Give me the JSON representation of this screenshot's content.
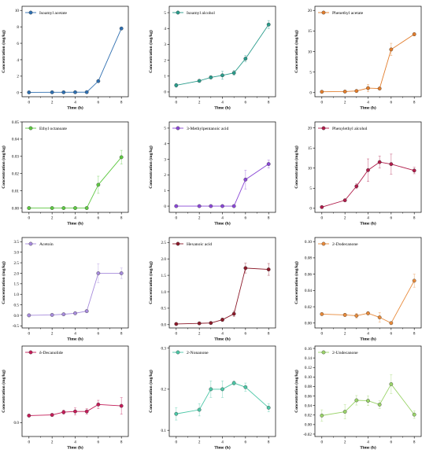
{
  "chart_data": [
    {
      "type": "line",
      "series": [
        {
          "name": "Isoamyl acetate",
          "color": "#2f6fb0",
          "x": [
            0,
            2,
            3,
            4,
            5,
            6,
            8
          ],
          "y": [
            0.03,
            0.04,
            0.04,
            0.05,
            0.06,
            1.4,
            7.8
          ],
          "err": [
            0.01,
            0.01,
            0.01,
            0.01,
            0.01,
            0.1,
            0.12
          ]
        }
      ],
      "xlabel": "Time (h)",
      "ylabel": "Concentration (mg/kg)",
      "xlim": [
        -0.6,
        8.6
      ],
      "ylim": [
        -0.5,
        10.5
      ],
      "xticks": [
        0,
        2,
        4,
        6,
        8
      ],
      "yticks": [
        0,
        2,
        4,
        6,
        8,
        10
      ]
    },
    {
      "type": "line",
      "series": [
        {
          "name": "Isoamyl alcohol",
          "color": "#2a9c8c",
          "x": [
            0,
            2,
            3,
            4,
            5,
            6,
            8
          ],
          "y": [
            0.42,
            0.7,
            0.92,
            1.05,
            1.2,
            2.1,
            4.25
          ],
          "err": [
            0.12,
            0.08,
            0.1,
            0.25,
            0.15,
            0.2,
            0.25
          ]
        }
      ],
      "xlabel": "Time (h)",
      "ylabel": "Concentration (mg/kg)",
      "xlim": [
        -0.6,
        8.6
      ],
      "ylim": [
        -0.3,
        5.4
      ],
      "xticks": [
        0,
        2,
        4,
        6,
        8
      ],
      "yticks": [
        0,
        1,
        2,
        3,
        4,
        5
      ]
    },
    {
      "type": "line",
      "series": [
        {
          "name": "Phenethyl acetate",
          "color": "#e27d2c",
          "x": [
            0,
            2,
            3,
            4,
            5,
            6,
            8
          ],
          "y": [
            0.2,
            0.25,
            0.4,
            1.1,
            1.0,
            10.5,
            14.2
          ],
          "err": [
            0.1,
            0.1,
            0.2,
            0.9,
            0.3,
            1.5,
            0.4
          ]
        }
      ],
      "xlabel": "Time (h)",
      "ylabel": "Concentration (mg/kg)",
      "xlim": [
        -0.6,
        8.6
      ],
      "ylim": [
        -1,
        21
      ],
      "xticks": [
        0,
        2,
        4,
        6,
        8
      ],
      "yticks": [
        0,
        5,
        10,
        15,
        20
      ]
    },
    {
      "type": "line",
      "series": [
        {
          "name": "Ethyl octanoate",
          "color": "#5ec842",
          "x": [
            0,
            2,
            3,
            4,
            5,
            6,
            8
          ],
          "y": [
            0,
            0,
            0,
            0,
            0,
            0.0135,
            0.0295
          ],
          "err": [
            0,
            0,
            0,
            0,
            0,
            0.005,
            0.004
          ]
        }
      ],
      "xlabel": "Time (h)",
      "ylabel": "Concentration (mg/kg)",
      "xlim": [
        -0.6,
        8.6
      ],
      "ylim": [
        -0.0025,
        0.05
      ],
      "xticks": [
        0,
        2,
        4,
        6,
        8
      ],
      "yticks": [
        0,
        0.01,
        0.02,
        0.03,
        0.04,
        0.05
      ],
      "ytick_labels": [
        "0.00",
        "0.01",
        "0.02",
        "0.03",
        "0.04",
        "0.05"
      ]
    },
    {
      "type": "line",
      "series": [
        {
          "name": "3-Methylpentanoic acid",
          "color": "#8a48d6",
          "x": [
            0,
            2,
            3,
            4,
            5,
            6,
            8
          ],
          "y": [
            0,
            0,
            0,
            0,
            0,
            1.7,
            2.7
          ],
          "err": [
            0,
            0,
            0,
            0,
            0,
            0.6,
            0.25
          ]
        }
      ],
      "xlabel": "Time (h)",
      "ylabel": "Concentration (mg/kg)",
      "xlim": [
        -0.6,
        8.6
      ],
      "ylim": [
        -0.4,
        5.4
      ],
      "xticks": [
        0,
        2,
        4,
        6,
        8
      ],
      "yticks": [
        0,
        1,
        2,
        3,
        4,
        5
      ]
    },
    {
      "type": "line",
      "series": [
        {
          "name": "Phenylethyl alcohol",
          "color": "#b01c4a",
          "x": [
            0,
            2,
            3,
            4,
            5,
            6,
            8
          ],
          "y": [
            0.3,
            2.0,
            5.5,
            9.5,
            11.5,
            11.0,
            9.4
          ],
          "err": [
            0.2,
            0.3,
            0.6,
            2.8,
            1.5,
            2.5,
            0.8
          ]
        }
      ],
      "xlabel": "Time (h)",
      "ylabel": "Concentration (mg/kg)",
      "xlim": [
        -0.6,
        8.6
      ],
      "ylim": [
        -1,
        21.5
      ],
      "xticks": [
        0,
        2,
        4,
        6,
        8
      ],
      "yticks": [
        0,
        5,
        10,
        15,
        20
      ]
    },
    {
      "type": "line",
      "series": [
        {
          "name": "Acetoin",
          "color": "#a78cdc",
          "x": [
            0,
            2,
            3,
            4,
            5,
            6,
            8
          ],
          "y": [
            0,
            0.02,
            0.05,
            0.1,
            0.2,
            2.0,
            2.0
          ],
          "err": [
            0.01,
            0.02,
            0.02,
            0.03,
            0.04,
            0.45,
            0.25
          ]
        }
      ],
      "xlabel": "Time (h)",
      "ylabel": "Concentration (mg/kg)",
      "xlim": [
        -0.6,
        8.6
      ],
      "ylim": [
        -0.6,
        3.7
      ],
      "xticks": [
        0,
        2,
        4,
        6,
        8
      ],
      "yticks": [
        -0.5,
        0,
        0.5,
        1,
        1.5,
        2,
        2.5,
        3,
        3.5
      ],
      "ytick_labels": [
        "-0.5",
        "0.0",
        "0.5",
        "1.0",
        "1.5",
        "2.0",
        "2.5",
        "3.0",
        "3.5"
      ]
    },
    {
      "type": "line",
      "series": [
        {
          "name": "Hexanoic acid",
          "color": "#8c1a2a",
          "x": [
            0,
            2,
            3,
            4,
            5,
            6,
            8
          ],
          "y": [
            0.02,
            0.04,
            0.05,
            0.15,
            0.33,
            1.72,
            1.68
          ],
          "err": [
            0.01,
            0.02,
            0.02,
            0.05,
            0.08,
            0.15,
            0.18
          ]
        }
      ],
      "xlabel": "Time (h)",
      "ylabel": "Concentration (mg/kg)",
      "xlim": [
        -0.6,
        8.6
      ],
      "ylim": [
        -0.1,
        2.65
      ],
      "xticks": [
        0,
        2,
        4,
        6,
        8
      ],
      "yticks": [
        0,
        0.5,
        1,
        1.5,
        2,
        2.5
      ],
      "ytick_labels": [
        "0.0",
        "0.5",
        "1.0",
        "1.5",
        "2.0",
        "2.5"
      ]
    },
    {
      "type": "line",
      "series": [
        {
          "name": "2-Dodecanone",
          "color": "#e88a3a",
          "x": [
            0,
            2,
            3,
            4,
            5,
            6,
            8
          ],
          "y": [
            0.011,
            0.01,
            0.009,
            0.012,
            0.007,
            0,
            0.052
          ],
          "err": [
            0.001,
            0.002,
            0.003,
            0.002,
            0.006,
            0.001,
            0.008
          ]
        }
      ],
      "xlabel": "Time (h)",
      "ylabel": "Concentration (mg/kg)",
      "xlim": [
        -0.6,
        8.6
      ],
      "ylim": [
        -0.006,
        0.105
      ],
      "xticks": [
        0,
        2,
        4,
        6,
        8
      ],
      "yticks": [
        0,
        0.02,
        0.04,
        0.06,
        0.08,
        0.1
      ],
      "ytick_labels": [
        "0.00",
        "0.02",
        "0.04",
        "0.06",
        "0.08",
        "0.10"
      ]
    },
    {
      "type": "line",
      "series": [
        {
          "name": "δ-Decanolide",
          "color": "#c41c58",
          "x": [
            0,
            2,
            3,
            4,
            5,
            6,
            8
          ],
          "y": [
            0.05,
            0.055,
            0.075,
            0.08,
            0.08,
            0.13,
            0.12
          ],
          "err": [
            0.005,
            0.01,
            0.015,
            0.025,
            0.02,
            0.03,
            0.06
          ]
        }
      ],
      "xlabel": "Time (h)",
      "ylabel": "Concentration (mg/kg)",
      "xlim": [
        -0.6,
        8.6
      ],
      "ylim": [
        -0.1,
        0.55
      ],
      "xticks": [
        0,
        2,
        4,
        6,
        8
      ],
      "yticks": [
        0
      ],
      "ytick_labels": [
        "0.0"
      ]
    },
    {
      "type": "line",
      "series": [
        {
          "name": "2-Nonanone",
          "color": "#4cc7a7",
          "x": [
            0,
            2,
            3,
            4,
            5,
            6,
            8
          ],
          "y": [
            0.14,
            0.15,
            0.2,
            0.2,
            0.215,
            0.205,
            0.155
          ],
          "err": [
            0.015,
            0.015,
            0.02,
            0.02,
            0.005,
            0.01,
            0.01
          ]
        }
      ],
      "xlabel": "Time (h)",
      "ylabel": "Concentration (mg/kg)",
      "xlim": [
        -0.6,
        8.6
      ],
      "ylim": [
        0.085,
        0.305
      ],
      "xticks": [
        0,
        2,
        4,
        6,
        8
      ],
      "yticks": [
        0.1,
        0.2,
        0.3
      ],
      "ytick_labels": [
        "0.1",
        "0.2",
        "0.3"
      ]
    },
    {
      "type": "line",
      "series": [
        {
          "name": "2-Undecanone",
          "color": "#9bd46a",
          "x": [
            0,
            2,
            3,
            4,
            5,
            6,
            8
          ],
          "y": [
            0.019,
            0.027,
            0.051,
            0.05,
            0.042,
            0.085,
            0.021
          ],
          "err": [
            0.012,
            0.015,
            0.01,
            0.01,
            0.008,
            0.02,
            0.008
          ]
        }
      ],
      "xlabel": "Time (h)",
      "ylabel": "Concentration (mg/kg)",
      "xlim": [
        -0.6,
        8.6
      ],
      "ylim": [
        -0.025,
        0.165
      ],
      "xticks": [
        0,
        2,
        4,
        6,
        8
      ],
      "yticks": [
        -0.02,
        0,
        0.02,
        0.04,
        0.06,
        0.08,
        0.1,
        0.12,
        0.14,
        0.16
      ],
      "ytick_labels": [
        "-0.02",
        "0.00",
        "0.02",
        "0.04",
        "0.06",
        "0.08",
        "0.10",
        "0.12",
        "0.14",
        "0.16"
      ]
    }
  ]
}
